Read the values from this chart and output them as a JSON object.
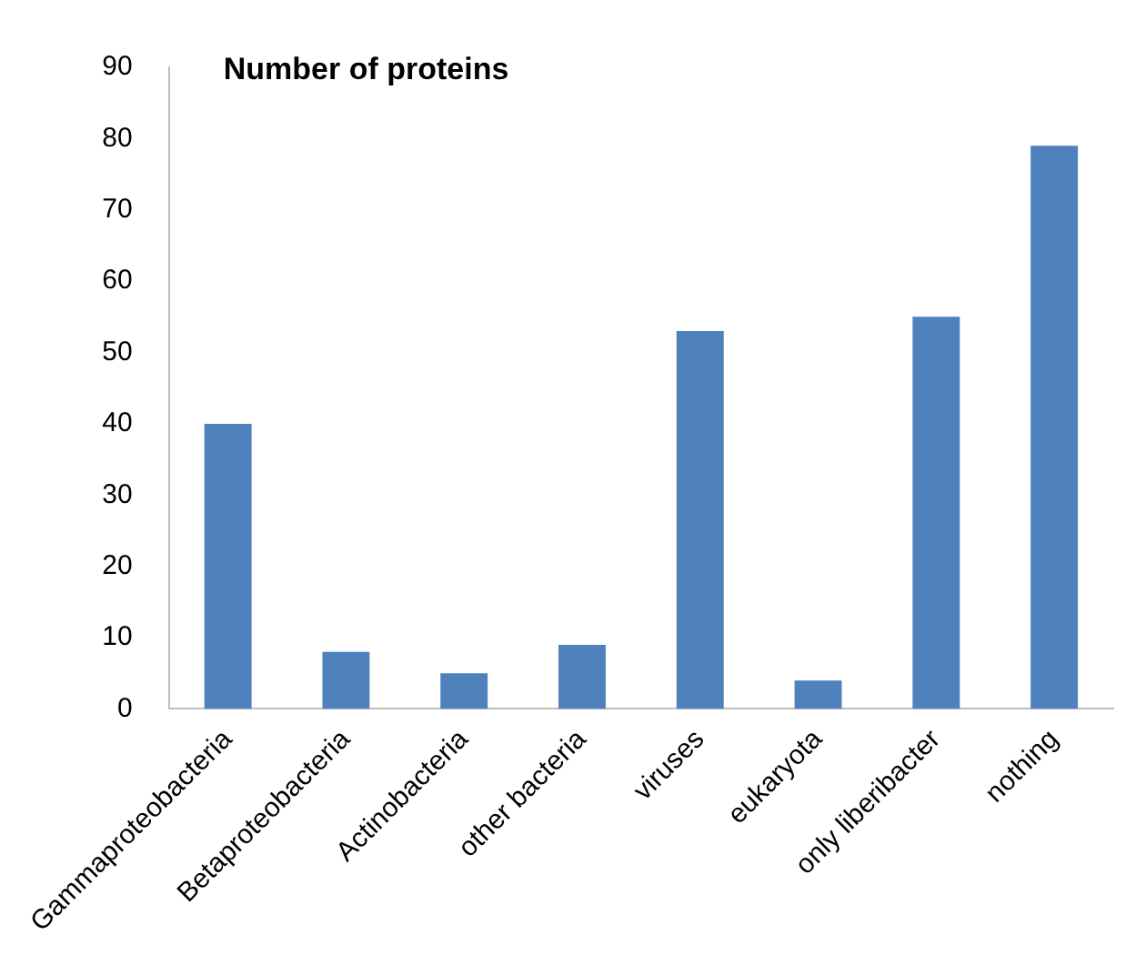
{
  "chart_data": {
    "type": "bar",
    "title": "Number of proteins",
    "categories": [
      "Gammaproteobacteria",
      "Betaproteobacteria",
      "Actinobacteria",
      "other bacteria",
      "viruses",
      "eukaryota",
      "only liberibacter",
      "nothing"
    ],
    "values": [
      40,
      8,
      5,
      9,
      53,
      4,
      55,
      79
    ],
    "color": "#4f81bd",
    "ylim": [
      0,
      90
    ],
    "yticks": [
      0,
      10,
      20,
      30,
      40,
      50,
      60,
      70,
      80,
      90
    ],
    "grid": false,
    "legend": false
  }
}
